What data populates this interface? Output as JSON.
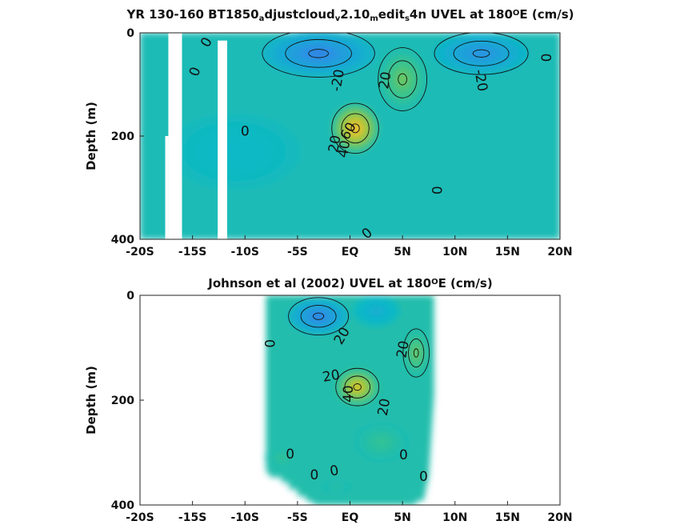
{
  "figure": {
    "background": "#ffffff",
    "colormap": [
      "#3d4fc4",
      "#2f8fe6",
      "#0cb8c8",
      "#3cc48a",
      "#9ac83c",
      "#e6c02c",
      "#f4c04a"
    ]
  },
  "chart_data": [
    {
      "type": "heatmap",
      "title": {
        "parts": [
          {
            "t": "YR 130-160 BT1850",
            "s": "n"
          },
          {
            "t": "a",
            "s": "sub"
          },
          {
            "t": "djustcloud",
            "s": "n"
          },
          {
            "t": "v",
            "s": "sub"
          },
          {
            "t": "2.10",
            "s": "n"
          },
          {
            "t": "m",
            "s": "sub"
          },
          {
            "t": "edit",
            "s": "n"
          },
          {
            "t": "s",
            "s": "sub"
          },
          {
            "t": "4n UVEL at 180",
            "s": "n"
          },
          {
            "t": "O",
            "s": "sup"
          },
          {
            "t": "E (cm/s)",
            "s": "n"
          }
        ]
      },
      "ylabel": "Depth (m)",
      "xlim": [
        -20,
        20
      ],
      "ylim": [
        0,
        400
      ],
      "y_reversed": true,
      "x_ticks": [
        -20,
        -15,
        -10,
        -5,
        0,
        5,
        10,
        15,
        20
      ],
      "x_tick_labels": [
        "-20S",
        "-15S",
        "-10S",
        "-5S",
        "EQ",
        "5N",
        "10N",
        "15N",
        "20N"
      ],
      "y_ticks": [
        0,
        200,
        400
      ],
      "y_tick_labels": [
        "0",
        "200",
        "400"
      ],
      "data_extent": {
        "x": [
          -20,
          20
        ],
        "y": [
          0,
          400
        ]
      },
      "missing_columns": [
        {
          "x": [
            -17.6,
            -17.3
          ],
          "y": [
            200,
            400
          ]
        },
        {
          "x": [
            -17.3,
            -16.0
          ],
          "y": [
            0,
            400
          ]
        },
        {
          "x": [
            -12.6,
            -11.7
          ],
          "y": [
            15,
            400
          ]
        }
      ],
      "velocity_features": [
        {
          "kind": "max",
          "x": 0.5,
          "y": 185,
          "value": 60,
          "rx": 2.5,
          "ry": 95
        },
        {
          "kind": "max",
          "x": 5.0,
          "y": 90,
          "value": 25,
          "rx": 2.6,
          "ry": 120
        },
        {
          "kind": "min",
          "x": -3.0,
          "y": 40,
          "value": -25,
          "rx": 6.0,
          "ry": 90
        },
        {
          "kind": "min",
          "x": 12.5,
          "y": 40,
          "value": -20,
          "rx": 5.0,
          "ry": 80
        },
        {
          "kind": "min",
          "x": -11.0,
          "y": 230,
          "value": -3,
          "rx": 7.0,
          "ry": 150
        }
      ],
      "contour_labels": [
        {
          "text": "0",
          "x": -13.7,
          "y": 18,
          "rot": -60
        },
        {
          "text": "0",
          "x": -14.8,
          "y": 75,
          "rot": -70
        },
        {
          "text": "0",
          "x": -10.0,
          "y": 190,
          "rot": 0
        },
        {
          "text": "-20",
          "x": -1.2,
          "y": 92,
          "rot": -80
        },
        {
          "text": "20",
          "x": 3.3,
          "y": 92,
          "rot": -80
        },
        {
          "text": "-20",
          "x": 12.5,
          "y": 92,
          "rot": 80
        },
        {
          "text": "0",
          "x": 18.7,
          "y": 48,
          "rot": -90
        },
        {
          "text": "60",
          "x": -0.2,
          "y": 190,
          "rot": -60
        },
        {
          "text": "20",
          "x": -1.5,
          "y": 215,
          "rot": -80
        },
        {
          "text": "40",
          "x": -0.6,
          "y": 225,
          "rot": -80
        },
        {
          "text": "0",
          "x": 8.3,
          "y": 305,
          "rot": -90
        },
        {
          "text": "0",
          "x": 1.6,
          "y": 388,
          "rot": -40
        }
      ]
    },
    {
      "type": "heatmap",
      "title": {
        "parts": [
          {
            "t": "Johnson et al (2002) UVEL at 180",
            "s": "n"
          },
          {
            "t": "O",
            "s": "sup"
          },
          {
            "t": "E (cm/s)",
            "s": "n"
          }
        ]
      },
      "ylabel": "Depth (m)",
      "xlim": [
        -20,
        20
      ],
      "ylim": [
        0,
        400
      ],
      "y_reversed": true,
      "x_ticks": [
        -20,
        -15,
        -10,
        -5,
        0,
        5,
        10,
        15,
        20
      ],
      "x_tick_labels": [
        "-20S",
        "-15S",
        "-10S",
        "-5S",
        "EQ",
        "5N",
        "10N",
        "15N",
        "20N"
      ],
      "y_ticks": [
        0,
        200,
        400
      ],
      "y_tick_labels": [
        "0",
        "200",
        "400"
      ],
      "data_extent": {
        "x": [
          -8,
          8
        ],
        "y": [
          0,
          400
        ]
      },
      "bottom_boundary": [
        [
          -8.0,
          335
        ],
        [
          -7.5,
          347
        ],
        [
          -6.5,
          347
        ],
        [
          -6.5,
          357
        ],
        [
          -5.8,
          357
        ],
        [
          -5.8,
          370
        ],
        [
          -5.0,
          370
        ],
        [
          -5.0,
          383
        ],
        [
          -4.2,
          383
        ],
        [
          -4.2,
          393
        ],
        [
          -3.5,
          393
        ],
        [
          -3.5,
          400
        ],
        [
          6.3,
          400
        ],
        [
          6.3,
          392
        ],
        [
          7.0,
          392
        ],
        [
          7.5,
          345
        ],
        [
          8.0,
          190
        ]
      ],
      "velocity_features": [
        {
          "kind": "max",
          "x": 0.7,
          "y": 175,
          "value": 50,
          "rx": 2.3,
          "ry": 70
        },
        {
          "kind": "max",
          "x": 6.3,
          "y": 110,
          "value": 25,
          "rx": 1.4,
          "ry": 90
        },
        {
          "kind": "max",
          "x": 3.0,
          "y": 280,
          "value": 12,
          "rx": 3.0,
          "ry": 80
        },
        {
          "kind": "min",
          "x": -3.0,
          "y": 40,
          "value": -25,
          "rx": 3.2,
          "ry": 70
        },
        {
          "kind": "min",
          "x": 2.5,
          "y": 30,
          "value": -8,
          "rx": 2.5,
          "ry": 60
        },
        {
          "kind": "max",
          "x": -6.5,
          "y": 310,
          "value": 12,
          "rx": 1.8,
          "ry": 40
        },
        {
          "kind": "max",
          "x": -1.3,
          "y": 365,
          "value": 8,
          "rx": 1.7,
          "ry": 30
        }
      ],
      "contour_labels": [
        {
          "text": "0",
          "x": -7.6,
          "y": 92,
          "rot": -90
        },
        {
          "text": "20",
          "x": -0.8,
          "y": 77,
          "rot": -60
        },
        {
          "text": "20",
          "x": 5.0,
          "y": 103,
          "rot": -80
        },
        {
          "text": "20",
          "x": -1.8,
          "y": 153,
          "rot": -10
        },
        {
          "text": "40",
          "x": -0.2,
          "y": 188,
          "rot": -90
        },
        {
          "text": "20",
          "x": 3.2,
          "y": 213,
          "rot": -80
        },
        {
          "text": "0",
          "x": -5.7,
          "y": 302,
          "rot": 0
        },
        {
          "text": "0",
          "x": -3.4,
          "y": 342,
          "rot": 0
        },
        {
          "text": "0",
          "x": -1.5,
          "y": 334,
          "rot": -10
        },
        {
          "text": "0",
          "x": 5.1,
          "y": 304,
          "rot": 0
        },
        {
          "text": "0",
          "x": 7.0,
          "y": 345,
          "rot": 0
        }
      ]
    }
  ]
}
